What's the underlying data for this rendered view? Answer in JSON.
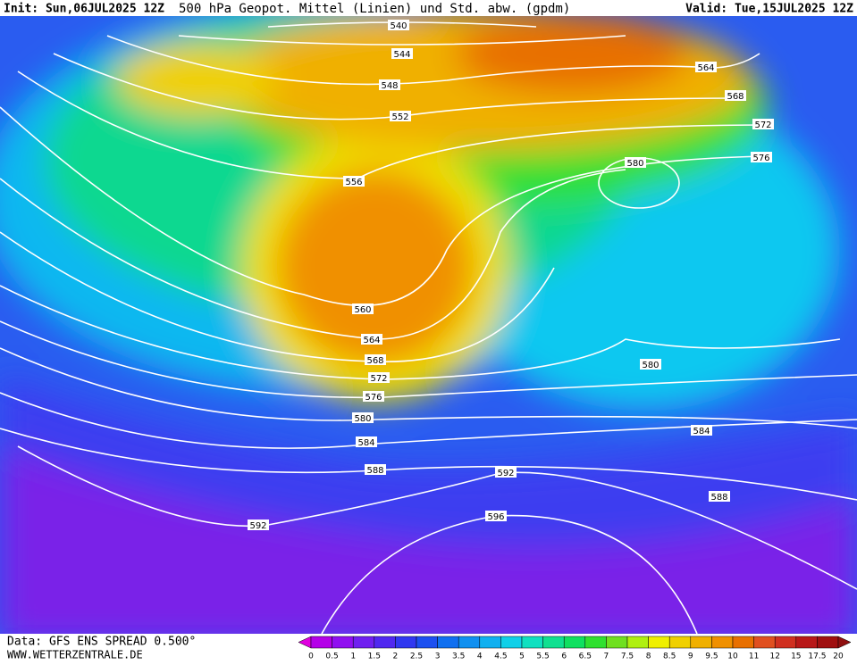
{
  "header": {
    "init": "Init: Sun,06JUL2025 12Z",
    "title": "500 hPa Geopot. Mittel (Linien) und Std. abw. (gpdm)",
    "valid": "Valid: Tue,15JUL2025 12Z"
  },
  "contour_labels": [
    540,
    544,
    548,
    552,
    556,
    560,
    564,
    568,
    572,
    576,
    580,
    584,
    588,
    592,
    596,
    592,
    564,
    568,
    572,
    576,
    580,
    580,
    584,
    588
  ],
  "colorbar": {
    "ticks": [
      0,
      0.5,
      1,
      1.5,
      2,
      2.5,
      3,
      3.5,
      4,
      4.5,
      5,
      5.5,
      6,
      6.5,
      7,
      7.5,
      8,
      8.5,
      9,
      9.5,
      10,
      11,
      12,
      15,
      17.5,
      20
    ],
    "colors": [
      "#e000e0",
      "#b400e8",
      "#9010f0",
      "#7020f0",
      "#5028f0",
      "#3038f0",
      "#1c50f0",
      "#1070f0",
      "#1090f0",
      "#10b0f0",
      "#10d0e8",
      "#10e0c0",
      "#10e090",
      "#10e060",
      "#30e030",
      "#70e020",
      "#b0f010",
      "#f0f000",
      "#f0d000",
      "#f0b000",
      "#f09000",
      "#e87000",
      "#e05020",
      "#d03020",
      "#b81818",
      "#a01010",
      "#901010"
    ]
  },
  "footer": {
    "source": "Data: GFS ENS SPREAD 0.500°",
    "site": "WWW.WETTERZENTRALE.DE"
  }
}
